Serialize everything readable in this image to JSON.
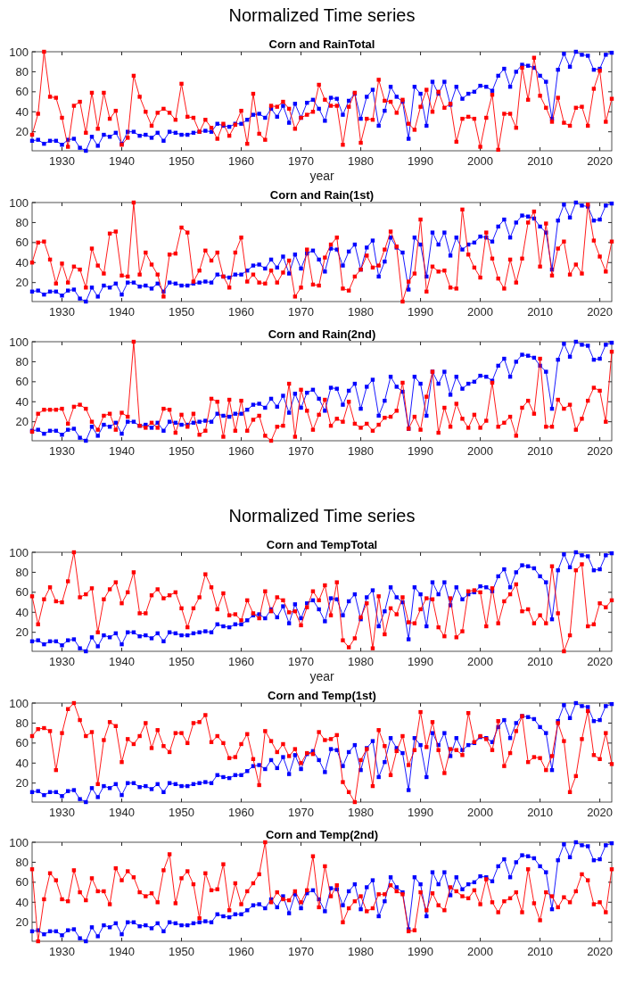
{
  "chart_data": [
    {
      "type": "line",
      "title": "Normalized Time series",
      "subtitle": "Corn and RainTotal",
      "xlabel": "year",
      "marker": "square",
      "grid": false,
      "xlim": [
        1925,
        2022
      ],
      "xticks": [
        1930,
        1940,
        1950,
        1960,
        1970,
        1980,
        1990,
        2000,
        2010,
        2020
      ],
      "ylim": [
        1,
        100
      ],
      "yticks": [
        20,
        40,
        60,
        80,
        100
      ],
      "x": [
        1925,
        1926,
        1927,
        1928,
        1929,
        1930,
        1931,
        1932,
        1933,
        1934,
        1935,
        1936,
        1937,
        1938,
        1939,
        1940,
        1941,
        1942,
        1943,
        1944,
        1945,
        1946,
        1947,
        1948,
        1949,
        1950,
        1951,
        1952,
        1953,
        1954,
        1955,
        1956,
        1957,
        1958,
        1959,
        1960,
        1961,
        1962,
        1963,
        1964,
        1965,
        1966,
        1967,
        1968,
        1969,
        1970,
        1971,
        1972,
        1973,
        1974,
        1975,
        1976,
        1977,
        1978,
        1979,
        1980,
        1981,
        1982,
        1983,
        1984,
        1985,
        1986,
        1987,
        1988,
        1989,
        1990,
        1991,
        1992,
        1993,
        1994,
        1995,
        1996,
        1997,
        1998,
        1999,
        2000,
        2001,
        2002,
        2003,
        2004,
        2005,
        2006,
        2007,
        2008,
        2009,
        2010,
        2011,
        2012,
        2013,
        2014,
        2015,
        2016,
        2017,
        2018,
        2019,
        2020,
        2021,
        2022
      ],
      "series": [
        {
          "color": "#0000ff",
          "values": [
            11,
            12,
            8,
            11,
            11,
            7,
            12,
            13,
            4,
            1,
            15,
            6,
            17,
            15,
            19,
            8,
            20,
            20,
            16,
            17,
            14,
            19,
            11,
            20,
            19,
            17,
            17,
            19,
            20,
            21,
            20,
            28,
            26,
            25,
            28,
            28,
            32,
            37,
            38,
            34,
            43,
            35,
            46,
            29,
            48,
            34,
            49,
            52,
            43,
            31,
            54,
            53,
            37,
            51,
            58,
            33,
            55,
            62,
            26,
            41,
            65,
            55,
            50,
            13,
            65,
            58,
            26,
            70,
            58,
            70,
            47,
            65,
            53,
            58,
            60,
            66,
            65,
            61,
            76,
            83,
            65,
            80,
            87,
            86,
            84,
            76,
            70,
            33,
            82,
            98,
            85,
            100,
            97,
            96,
            82,
            83,
            97,
            99
          ]
        },
        {
          "color": "#ff0000",
          "values": [
            17,
            38,
            100,
            55,
            54,
            34,
            5,
            46,
            50,
            19,
            59,
            23,
            59,
            33,
            41,
            7,
            14,
            76,
            55,
            40,
            26,
            39,
            43,
            39,
            32,
            68,
            35,
            34,
            20,
            32,
            24,
            13,
            28,
            16,
            27,
            41,
            8,
            58,
            18,
            12,
            46,
            45,
            50,
            43,
            23,
            34,
            37,
            40,
            67,
            52,
            46,
            46,
            7,
            45,
            59,
            9,
            33,
            32,
            72,
            51,
            50,
            39,
            52,
            28,
            22,
            45,
            62,
            40,
            60,
            44,
            48,
            10,
            33,
            35,
            33,
            5,
            34,
            57,
            2,
            38,
            38,
            24,
            84,
            52,
            94,
            56,
            44,
            30,
            54,
            29,
            26,
            44,
            45,
            26,
            63,
            81,
            30,
            53
          ]
        }
      ]
    },
    {
      "type": "line",
      "title": "Corn and Rain(1st)",
      "marker": "square",
      "grid": false,
      "xlim": [
        1925,
        2022
      ],
      "xticks": [
        1930,
        1940,
        1950,
        1960,
        1970,
        1980,
        1990,
        2000,
        2010,
        2020
      ],
      "ylim": [
        1,
        100
      ],
      "yticks": [
        20,
        40,
        60,
        80,
        100
      ],
      "x": [
        1925,
        1926,
        1927,
        1928,
        1929,
        1930,
        1931,
        1932,
        1933,
        1934,
        1935,
        1936,
        1937,
        1938,
        1939,
        1940,
        1941,
        1942,
        1943,
        1944,
        1945,
        1946,
        1947,
        1948,
        1949,
        1950,
        1951,
        1952,
        1953,
        1954,
        1955,
        1956,
        1957,
        1958,
        1959,
        1960,
        1961,
        1962,
        1963,
        1964,
        1965,
        1966,
        1967,
        1968,
        1969,
        1970,
        1971,
        1972,
        1973,
        1974,
        1975,
        1976,
        1977,
        1978,
        1979,
        1980,
        1981,
        1982,
        1983,
        1984,
        1985,
        1986,
        1987,
        1988,
        1989,
        1990,
        1991,
        1992,
        1993,
        1994,
        1995,
        1996,
        1997,
        1998,
        1999,
        2000,
        2001,
        2002,
        2003,
        2004,
        2005,
        2006,
        2007,
        2008,
        2009,
        2010,
        2011,
        2012,
        2013,
        2014,
        2015,
        2016,
        2017,
        2018,
        2019,
        2020,
        2021,
        2022
      ],
      "series": [
        {
          "color": "#0000ff",
          "values": [
            11,
            12,
            8,
            11,
            11,
            7,
            12,
            13,
            4,
            1,
            15,
            6,
            17,
            15,
            19,
            8,
            20,
            20,
            16,
            17,
            14,
            19,
            11,
            20,
            19,
            17,
            17,
            19,
            20,
            21,
            20,
            28,
            26,
            25,
            28,
            28,
            32,
            37,
            38,
            34,
            43,
            35,
            46,
            29,
            48,
            34,
            49,
            52,
            43,
            31,
            54,
            53,
            37,
            51,
            58,
            33,
            55,
            62,
            26,
            41,
            65,
            55,
            50,
            13,
            65,
            58,
            26,
            70,
            58,
            70,
            47,
            65,
            53,
            58,
            60,
            66,
            65,
            61,
            76,
            83,
            65,
            80,
            87,
            86,
            84,
            76,
            70,
            33,
            82,
            98,
            85,
            100,
            97,
            96,
            82,
            83,
            97,
            99
          ]
        },
        {
          "color": "#ff0000",
          "values": [
            40,
            60,
            61,
            43,
            19,
            39,
            20,
            36,
            33,
            15,
            54,
            37,
            29,
            69,
            71,
            27,
            26,
            100,
            28,
            50,
            38,
            28,
            6,
            48,
            49,
            75,
            70,
            21,
            32,
            52,
            42,
            50,
            26,
            15,
            50,
            65,
            21,
            28,
            20,
            19,
            32,
            20,
            30,
            42,
            6,
            15,
            53,
            18,
            17,
            45,
            58,
            65,
            14,
            12,
            26,
            33,
            47,
            35,
            37,
            53,
            71,
            56,
            1,
            21,
            29,
            83,
            11,
            36,
            31,
            32,
            15,
            14,
            93,
            48,
            35,
            25,
            70,
            44,
            24,
            14,
            43,
            20,
            44,
            80,
            91,
            36,
            79,
            27,
            54,
            61,
            28,
            38,
            29,
            98,
            62,
            46,
            31,
            61
          ]
        }
      ]
    },
    {
      "type": "line",
      "title": "Corn and Rain(2nd)",
      "marker": "square",
      "grid": false,
      "xlim": [
        1925,
        2022
      ],
      "xticks": [
        1930,
        1940,
        1950,
        1960,
        1970,
        1980,
        1990,
        2000,
        2010,
        2020
      ],
      "ylim": [
        1,
        100
      ],
      "yticks": [
        20,
        40,
        60,
        80,
        100
      ],
      "x": [
        1925,
        1926,
        1927,
        1928,
        1929,
        1930,
        1931,
        1932,
        1933,
        1934,
        1935,
        1936,
        1937,
        1938,
        1939,
        1940,
        1941,
        1942,
        1943,
        1944,
        1945,
        1946,
        1947,
        1948,
        1949,
        1950,
        1951,
        1952,
        1953,
        1954,
        1955,
        1956,
        1957,
        1958,
        1959,
        1960,
        1961,
        1962,
        1963,
        1964,
        1965,
        1966,
        1967,
        1968,
        1969,
        1970,
        1971,
        1972,
        1973,
        1974,
        1975,
        1976,
        1977,
        1978,
        1979,
        1980,
        1981,
        1982,
        1983,
        1984,
        1985,
        1986,
        1987,
        1988,
        1989,
        1990,
        1991,
        1992,
        1993,
        1994,
        1995,
        1996,
        1997,
        1998,
        1999,
        2000,
        2001,
        2002,
        2003,
        2004,
        2005,
        2006,
        2007,
        2008,
        2009,
        2010,
        2011,
        2012,
        2013,
        2014,
        2015,
        2016,
        2017,
        2018,
        2019,
        2020,
        2021,
        2022
      ],
      "series": [
        {
          "color": "#0000ff",
          "values": [
            11,
            12,
            8,
            11,
            11,
            7,
            12,
            13,
            4,
            1,
            15,
            6,
            17,
            15,
            19,
            8,
            20,
            20,
            16,
            17,
            14,
            19,
            11,
            20,
            19,
            17,
            17,
            19,
            20,
            21,
            20,
            28,
            26,
            25,
            28,
            28,
            32,
            37,
            38,
            34,
            43,
            35,
            46,
            29,
            48,
            34,
            49,
            52,
            43,
            31,
            54,
            53,
            37,
            51,
            58,
            33,
            55,
            62,
            26,
            41,
            65,
            55,
            50,
            13,
            65,
            58,
            26,
            70,
            58,
            70,
            47,
            65,
            53,
            58,
            60,
            66,
            65,
            61,
            76,
            83,
            65,
            80,
            87,
            86,
            84,
            76,
            70,
            33,
            82,
            98,
            85,
            100,
            97,
            96,
            82,
            83,
            97,
            99
          ]
        },
        {
          "color": "#ff0000",
          "values": [
            10,
            28,
            32,
            32,
            32,
            33,
            18,
            35,
            37,
            33,
            20,
            12,
            26,
            28,
            12,
            29,
            25,
            100,
            16,
            14,
            19,
            14,
            33,
            32,
            9,
            27,
            15,
            28,
            7,
            11,
            43,
            40,
            5,
            42,
            11,
            41,
            11,
            22,
            26,
            6,
            1,
            15,
            16,
            58,
            5,
            52,
            31,
            12,
            27,
            42,
            16,
            23,
            20,
            40,
            18,
            14,
            18,
            11,
            17,
            24,
            25,
            31,
            59,
            13,
            25,
            12,
            45,
            70,
            9,
            34,
            15,
            38,
            23,
            14,
            27,
            14,
            21,
            59,
            15,
            19,
            25,
            6,
            34,
            41,
            28,
            83,
            15,
            15,
            42,
            33,
            37,
            12,
            23,
            41,
            54,
            51,
            20,
            90
          ]
        }
      ]
    },
    {
      "type": "line",
      "title": "Normalized Time series",
      "subtitle": "Corn and TempTotal",
      "xlabel": "year",
      "marker": "square",
      "grid": false,
      "xlim": [
        1925,
        2022
      ],
      "xticks": [
        1930,
        1940,
        1950,
        1960,
        1970,
        1980,
        1990,
        2000,
        2010,
        2020
      ],
      "ylim": [
        1,
        100
      ],
      "yticks": [
        20,
        40,
        60,
        80,
        100
      ],
      "x": [
        1925,
        1926,
        1927,
        1928,
        1929,
        1930,
        1931,
        1932,
        1933,
        1934,
        1935,
        1936,
        1937,
        1938,
        1939,
        1940,
        1941,
        1942,
        1943,
        1944,
        1945,
        1946,
        1947,
        1948,
        1949,
        1950,
        1951,
        1952,
        1953,
        1954,
        1955,
        1956,
        1957,
        1958,
        1959,
        1960,
        1961,
        1962,
        1963,
        1964,
        1965,
        1966,
        1967,
        1968,
        1969,
        1970,
        1971,
        1972,
        1973,
        1974,
        1975,
        1976,
        1977,
        1978,
        1979,
        1980,
        1981,
        1982,
        1983,
        1984,
        1985,
        1986,
        1987,
        1988,
        1989,
        1990,
        1991,
        1992,
        1993,
        1994,
        1995,
        1996,
        1997,
        1998,
        1999,
        2000,
        2001,
        2002,
        2003,
        2004,
        2005,
        2006,
        2007,
        2008,
        2009,
        2010,
        2011,
        2012,
        2013,
        2014,
        2015,
        2016,
        2017,
        2018,
        2019,
        2020,
        2021,
        2022
      ],
      "series": [
        {
          "color": "#0000ff",
          "values": [
            11,
            12,
            8,
            11,
            11,
            7,
            12,
            13,
            4,
            1,
            15,
            6,
            17,
            15,
            19,
            8,
            20,
            20,
            16,
            17,
            14,
            19,
            11,
            20,
            19,
            17,
            17,
            19,
            20,
            21,
            20,
            28,
            26,
            25,
            28,
            28,
            32,
            37,
            38,
            34,
            43,
            35,
            46,
            29,
            48,
            34,
            49,
            52,
            43,
            31,
            54,
            53,
            37,
            51,
            58,
            33,
            55,
            62,
            26,
            41,
            65,
            55,
            50,
            13,
            65,
            58,
            26,
            70,
            58,
            70,
            47,
            65,
            53,
            58,
            60,
            66,
            65,
            61,
            76,
            83,
            65,
            80,
            87,
            86,
            84,
            76,
            70,
            33,
            82,
            98,
            85,
            100,
            97,
            96,
            82,
            83,
            97,
            99
          ]
        },
        {
          "color": "#ff0000",
          "values": [
            56,
            28,
            53,
            65,
            51,
            50,
            71,
            100,
            55,
            58,
            64,
            20,
            53,
            63,
            70,
            49,
            60,
            80,
            39,
            39,
            57,
            63,
            54,
            57,
            60,
            44,
            25,
            44,
            55,
            78,
            65,
            43,
            59,
            37,
            38,
            32,
            52,
            39,
            34,
            61,
            41,
            55,
            52,
            40,
            41,
            27,
            45,
            61,
            52,
            67,
            37,
            70,
            12,
            5,
            14,
            35,
            49,
            4,
            56,
            18,
            44,
            38,
            55,
            30,
            29,
            43,
            54,
            53,
            25,
            16,
            54,
            15,
            21,
            61,
            62,
            60,
            26,
            64,
            29,
            51,
            58,
            68,
            41,
            43,
            29,
            37,
            29,
            86,
            39,
            1,
            17,
            82,
            88,
            26,
            28,
            49,
            45,
            52
          ]
        }
      ]
    },
    {
      "type": "line",
      "title": "Corn and Temp(1st)",
      "marker": "square",
      "grid": false,
      "xlim": [
        1925,
        2022
      ],
      "xticks": [
        1930,
        1940,
        1950,
        1960,
        1970,
        1980,
        1990,
        2000,
        2010,
        2020
      ],
      "ylim": [
        1,
        100
      ],
      "yticks": [
        20,
        40,
        60,
        80,
        100
      ],
      "x": [
        1925,
        1926,
        1927,
        1928,
        1929,
        1930,
        1931,
        1932,
        1933,
        1934,
        1935,
        1936,
        1937,
        1938,
        1939,
        1940,
        1941,
        1942,
        1943,
        1944,
        1945,
        1946,
        1947,
        1948,
        1949,
        1950,
        1951,
        1952,
        1953,
        1954,
        1955,
        1956,
        1957,
        1958,
        1959,
        1960,
        1961,
        1962,
        1963,
        1964,
        1965,
        1966,
        1967,
        1968,
        1969,
        1970,
        1971,
        1972,
        1973,
        1974,
        1975,
        1976,
        1977,
        1978,
        1979,
        1980,
        1981,
        1982,
        1983,
        1984,
        1985,
        1986,
        1987,
        1988,
        1989,
        1990,
        1991,
        1992,
        1993,
        1994,
        1995,
        1996,
        1997,
        1998,
        1999,
        2000,
        2001,
        2002,
        2003,
        2004,
        2005,
        2006,
        2007,
        2008,
        2009,
        2010,
        2011,
        2012,
        2013,
        2014,
        2015,
        2016,
        2017,
        2018,
        2019,
        2020,
        2021,
        2022
      ],
      "series": [
        {
          "color": "#0000ff",
          "values": [
            11,
            12,
            8,
            11,
            11,
            7,
            12,
            13,
            4,
            1,
            15,
            6,
            17,
            15,
            19,
            8,
            20,
            20,
            16,
            17,
            14,
            19,
            11,
            20,
            19,
            17,
            17,
            19,
            20,
            21,
            20,
            28,
            26,
            25,
            28,
            28,
            32,
            37,
            38,
            34,
            43,
            35,
            46,
            29,
            48,
            34,
            49,
            52,
            43,
            31,
            54,
            53,
            37,
            51,
            58,
            33,
            55,
            62,
            26,
            41,
            65,
            55,
            50,
            13,
            65,
            58,
            26,
            70,
            58,
            70,
            47,
            65,
            53,
            58,
            60,
            66,
            65,
            61,
            76,
            83,
            65,
            80,
            87,
            86,
            84,
            76,
            70,
            33,
            82,
            98,
            85,
            100,
            97,
            96,
            82,
            83,
            97,
            99
          ]
        },
        {
          "color": "#ff0000",
          "values": [
            67,
            74,
            75,
            72,
            33,
            70,
            94,
            100,
            83,
            67,
            71,
            19,
            63,
            81,
            77,
            41,
            64,
            59,
            67,
            80,
            55,
            73,
            57,
            51,
            70,
            70,
            60,
            80,
            81,
            88,
            61,
            67,
            60,
            45,
            46,
            59,
            69,
            44,
            18,
            72,
            62,
            51,
            59,
            47,
            54,
            40,
            50,
            49,
            71,
            63,
            64,
            68,
            21,
            11,
            1,
            43,
            54,
            17,
            73,
            57,
            28,
            52,
            67,
            38,
            53,
            91,
            56,
            81,
            53,
            30,
            54,
            53,
            48,
            90,
            61,
            67,
            64,
            53,
            82,
            37,
            50,
            72,
            87,
            41,
            46,
            45,
            33,
            47,
            80,
            62,
            11,
            27,
            64,
            92,
            48,
            44,
            70,
            39
          ]
        }
      ]
    },
    {
      "type": "line",
      "title": "Corn and Temp(2nd)",
      "marker": "square",
      "grid": false,
      "xlim": [
        1925,
        2022
      ],
      "xticks": [
        1930,
        1940,
        1950,
        1960,
        1970,
        1980,
        1990,
        2000,
        2010,
        2020
      ],
      "ylim": [
        1,
        100
      ],
      "yticks": [
        20,
        40,
        60,
        80,
        100
      ],
      "x": [
        1925,
        1926,
        1927,
        1928,
        1929,
        1930,
        1931,
        1932,
        1933,
        1934,
        1935,
        1936,
        1937,
        1938,
        1939,
        1940,
        1941,
        1942,
        1943,
        1944,
        1945,
        1946,
        1947,
        1948,
        1949,
        1950,
        1951,
        1952,
        1953,
        1954,
        1955,
        1956,
        1957,
        1958,
        1959,
        1960,
        1961,
        1962,
        1963,
        1964,
        1965,
        1966,
        1967,
        1968,
        1969,
        1970,
        1971,
        1972,
        1973,
        1974,
        1975,
        1976,
        1977,
        1978,
        1979,
        1980,
        1981,
        1982,
        1983,
        1984,
        1985,
        1986,
        1987,
        1988,
        1989,
        1990,
        1991,
        1992,
        1993,
        1994,
        1995,
        1996,
        1997,
        1998,
        1999,
        2000,
        2001,
        2002,
        2003,
        2004,
        2005,
        2006,
        2007,
        2008,
        2009,
        2010,
        2011,
        2012,
        2013,
        2014,
        2015,
        2016,
        2017,
        2018,
        2019,
        2020,
        2021,
        2022
      ],
      "series": [
        {
          "color": "#0000ff",
          "values": [
            11,
            12,
            8,
            11,
            11,
            7,
            12,
            13,
            4,
            1,
            15,
            6,
            17,
            15,
            19,
            8,
            20,
            20,
            16,
            17,
            14,
            19,
            11,
            20,
            19,
            17,
            17,
            19,
            20,
            21,
            20,
            28,
            26,
            25,
            28,
            28,
            32,
            37,
            38,
            34,
            43,
            35,
            46,
            29,
            48,
            34,
            49,
            52,
            43,
            31,
            54,
            53,
            37,
            51,
            58,
            33,
            55,
            62,
            26,
            41,
            65,
            55,
            50,
            13,
            65,
            58,
            26,
            70,
            58,
            70,
            47,
            65,
            53,
            58,
            60,
            66,
            65,
            61,
            76,
            83,
            65,
            80,
            87,
            86,
            84,
            76,
            70,
            33,
            82,
            98,
            85,
            100,
            97,
            96,
            82,
            83,
            97,
            99
          ]
        },
        {
          "color": "#ff0000",
          "values": [
            73,
            1,
            43,
            69,
            62,
            43,
            41,
            72,
            50,
            42,
            64,
            51,
            51,
            38,
            74,
            62,
            71,
            65,
            50,
            46,
            49,
            40,
            72,
            88,
            39,
            64,
            71,
            58,
            24,
            69,
            52,
            53,
            78,
            32,
            59,
            38,
            51,
            59,
            68,
            100,
            40,
            50,
            43,
            42,
            51,
            40,
            52,
            86,
            35,
            76,
            46,
            57,
            20,
            34,
            41,
            46,
            31,
            34,
            48,
            48,
            57,
            51,
            48,
            11,
            12,
            50,
            32,
            49,
            37,
            32,
            55,
            51,
            46,
            44,
            52,
            38,
            63,
            40,
            30,
            41,
            44,
            50,
            30,
            73,
            39,
            22,
            50,
            46,
            35,
            45,
            40,
            51,
            68,
            62,
            38,
            40,
            30,
            73
          ]
        }
      ]
    }
  ]
}
